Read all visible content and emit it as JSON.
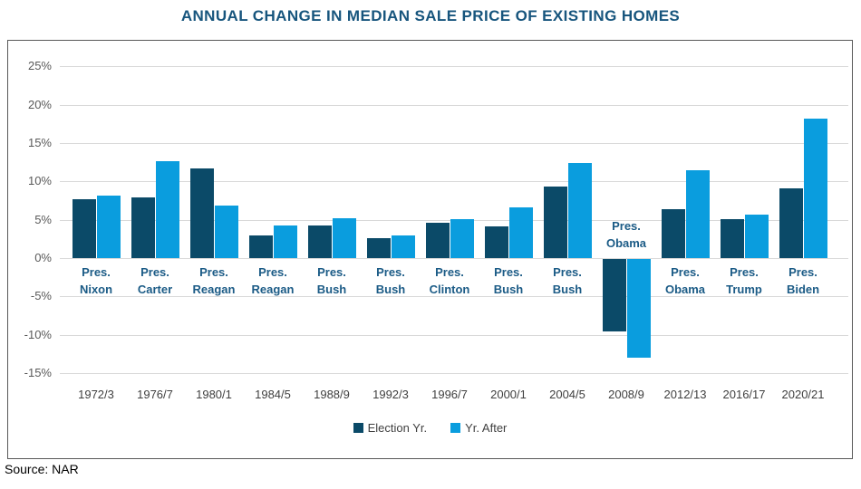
{
  "title": "ANNUAL CHANGE IN MEDIAN SALE PRICE OF EXISTING HOMES",
  "source_note": "Source: NAR",
  "colors": {
    "title_text": "#17557D",
    "president_text": "#1B5B86",
    "election_bar": "#0B4A68",
    "after_bar": "#0A9DDE",
    "gridline": "#D9D9D9",
    "y_axis_text": "#595959",
    "x_axis_text": "#3F3F3F",
    "frame_border": "#595959"
  },
  "legend": {
    "items": [
      {
        "label": "Election Yr."
      },
      {
        "label": "Yr. After"
      }
    ]
  },
  "chart_data": {
    "type": "bar",
    "title": "ANNUAL CHANGE IN MEDIAN SALE PRICE OF EXISTING HOMES",
    "categories": [
      "1972/3",
      "1976/7",
      "1980/1",
      "1984/5",
      "1988/9",
      "1992/3",
      "1996/7",
      "2000/1",
      "2004/5",
      "2008/9",
      "2012/13",
      "2016/17",
      "2020/21"
    ],
    "bar_group_labels": [
      [
        "Pres.",
        "Nixon"
      ],
      [
        "Pres.",
        "Carter"
      ],
      [
        "Pres.",
        "Reagan"
      ],
      [
        "Pres.",
        "Reagan"
      ],
      [
        "Pres.",
        "Bush"
      ],
      [
        "Pres.",
        "Bush"
      ],
      [
        "Pres.",
        "Clinton"
      ],
      [
        "Pres.",
        "Bush"
      ],
      [
        "Pres.",
        "Bush"
      ],
      [
        "Pres.",
        "Obama"
      ],
      [
        "Pres.",
        "Obama"
      ],
      [
        "Pres.",
        "Trump"
      ],
      [
        "Pres.",
        "Biden"
      ]
    ],
    "series": [
      {
        "name": "Election Yr.",
        "color": "#0B4A68",
        "values": [
          7.7,
          7.9,
          11.7,
          3.0,
          4.3,
          2.6,
          4.6,
          4.1,
          9.3,
          -9.5,
          6.4,
          5.1,
          9.1
        ]
      },
      {
        "name": "Yr. After",
        "color": "#0A9DDE",
        "values": [
          8.2,
          12.6,
          6.8,
          4.3,
          5.2,
          3.0,
          5.1,
          6.6,
          12.4,
          -12.9,
          11.5,
          5.7,
          18.2
        ]
      }
    ],
    "xlabel": "",
    "ylabel": "",
    "y_ticks": [
      "25%",
      "20%",
      "15%",
      "10%",
      "5%",
      "0%",
      "-5%",
      "-10%",
      "-15%"
    ],
    "y_tick_values": [
      25,
      20,
      15,
      10,
      5,
      0,
      -5,
      -10,
      -15
    ],
    "ylim": [
      -15,
      25
    ],
    "grid": true,
    "legend_position": "bottom"
  }
}
